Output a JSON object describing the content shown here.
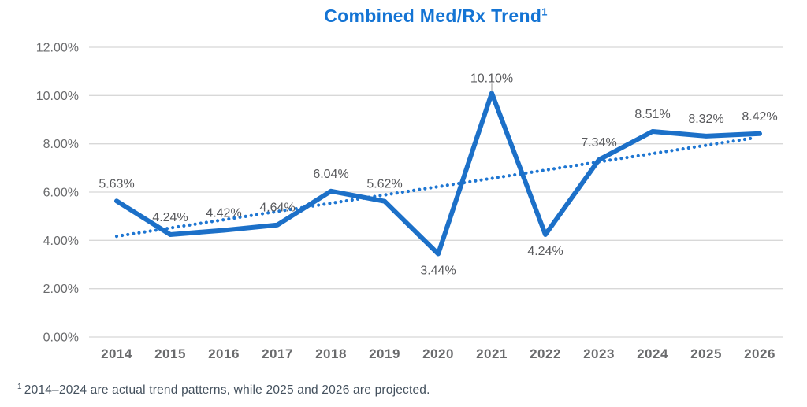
{
  "header": {
    "title_text": "Combined Med/Rx Trend",
    "title_superscript": "1"
  },
  "footnote": {
    "marker": "1",
    "text": "2014–2024 are actual trend patterns, while 2025 and 2026 are projected."
  },
  "colors": {
    "title": "#1474d4",
    "series_line": "#1c70c8",
    "trend_line": "#1e76d2",
    "gridline": "#d8d8d8",
    "data_label": "#58595c",
    "axis_label": "#6a6b6d",
    "leader_line": "#a8a8a8",
    "background": "#ffffff"
  },
  "chart_data": {
    "type": "line",
    "title": "Combined Med/Rx Trend¹",
    "categories": [
      "2014",
      "2015",
      "2016",
      "2017",
      "2018",
      "2019",
      "2020",
      "2021",
      "2022",
      "2023",
      "2024",
      "2025",
      "2026"
    ],
    "series": [
      {
        "name": "Combined Med/Rx Trend",
        "style": "solid",
        "values": [
          5.63,
          4.24,
          4.42,
          4.64,
          6.04,
          5.62,
          3.44,
          10.1,
          4.24,
          7.34,
          8.51,
          8.32,
          8.42
        ],
        "data_labels": [
          {
            "text": "5.63%",
            "position": "above"
          },
          {
            "text": "4.24%",
            "position": "above"
          },
          {
            "text": "4.42%",
            "position": "above"
          },
          {
            "text": "4.64%",
            "position": "above"
          },
          {
            "text": "6.04%",
            "position": "above"
          },
          {
            "text": "5.62%",
            "position": "above"
          },
          {
            "text": "3.44%",
            "position": "below"
          },
          {
            "text": "10.10%",
            "position": "above-leader"
          },
          {
            "text": "4.24%",
            "position": "below"
          },
          {
            "text": "7.34%",
            "position": "above"
          },
          {
            "text": "8.51%",
            "position": "above"
          },
          {
            "text": "8.32%",
            "position": "above"
          },
          {
            "text": "8.42%",
            "position": "above"
          }
        ]
      }
    ],
    "trendline": {
      "name": "Linear trend (dotted)",
      "style": "dotted",
      "start_value": 4.17,
      "end_value": 8.25
    },
    "yticks": [
      {
        "value": 0,
        "label": "0.00%"
      },
      {
        "value": 2,
        "label": "2.00%"
      },
      {
        "value": 4,
        "label": "4.00%"
      },
      {
        "value": 6,
        "label": "6.00%"
      },
      {
        "value": 8,
        "label": "8.00%"
      },
      {
        "value": 10,
        "label": "10.00%"
      },
      {
        "value": 12,
        "label": "12.00%"
      }
    ],
    "ylim": [
      0,
      12
    ],
    "xlabel": "",
    "ylabel": "",
    "grid": true,
    "legend": "none"
  }
}
